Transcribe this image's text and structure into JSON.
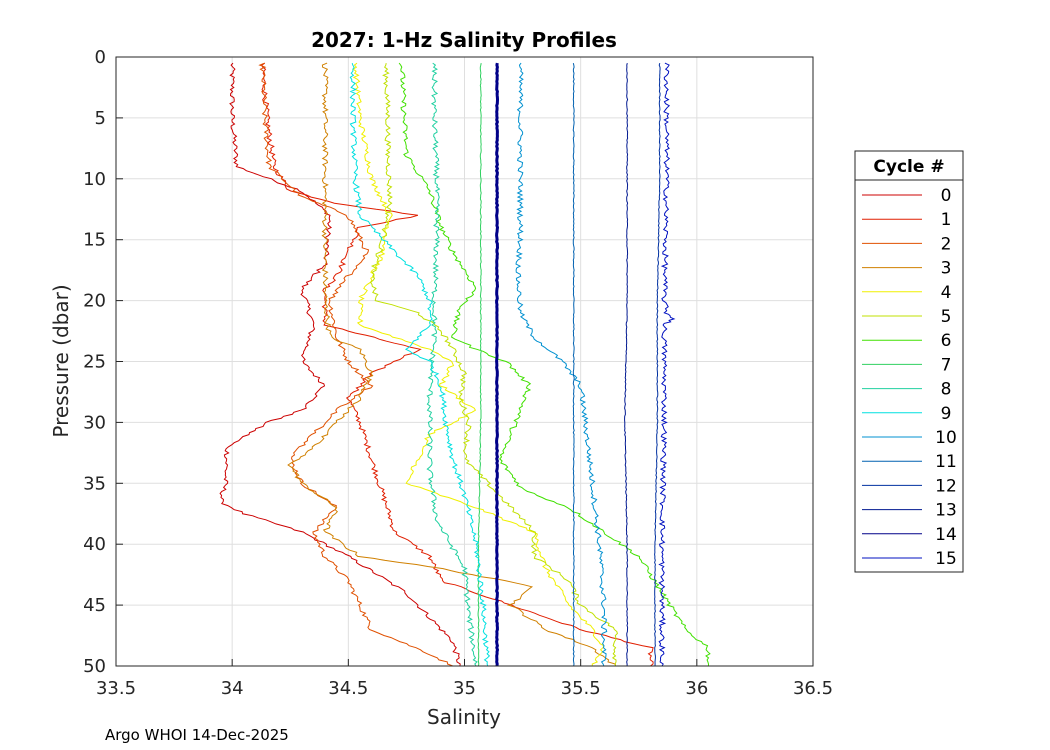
{
  "chart_data": {
    "type": "line",
    "title": "2027: 1-Hz Salinity Profiles",
    "xlabel": "Salinity",
    "ylabel": "Pressure (dbar)",
    "xlim": [
      33.5,
      36.5
    ],
    "ylim": [
      0,
      50
    ],
    "y_reversed": true,
    "grid": true,
    "x_ticks": [
      "33.5",
      "34",
      "34.5",
      "35",
      "35.5",
      "36",
      "36.5"
    ],
    "y_ticks": [
      "0",
      "5",
      "10",
      "15",
      "20",
      "25",
      "30",
      "35",
      "40",
      "45",
      "50"
    ],
    "legend_title": "Cycle #",
    "legend_position": "outside-right",
    "footer": "Argo WHOI 14-Dec-2025",
    "series": [
      {
        "name": "0",
        "color": "#cc0000",
        "points": [
          [
            34.0,
            0.5
          ],
          [
            34.0,
            5
          ],
          [
            34.02,
            9
          ],
          [
            34.3,
            11
          ],
          [
            34.42,
            13
          ],
          [
            34.4,
            17
          ],
          [
            34.3,
            19
          ],
          [
            34.35,
            22
          ],
          [
            34.3,
            25
          ],
          [
            34.4,
            27
          ],
          [
            34.3,
            29
          ],
          [
            34.15,
            30
          ],
          [
            33.98,
            32
          ],
          [
            33.97,
            35
          ],
          [
            33.95,
            36.5
          ],
          [
            34.05,
            37.5
          ],
          [
            34.3,
            39
          ],
          [
            34.5,
            41
          ],
          [
            34.75,
            44
          ],
          [
            34.85,
            46
          ],
          [
            34.95,
            48
          ],
          [
            34.98,
            50
          ]
        ]
      },
      {
        "name": "1",
        "color": "#e01e00",
        "points": [
          [
            34.13,
            0.5
          ],
          [
            34.15,
            5
          ],
          [
            34.18,
            9
          ],
          [
            34.25,
            11
          ],
          [
            34.45,
            12
          ],
          [
            34.8,
            13
          ],
          [
            34.55,
            14
          ],
          [
            34.5,
            16
          ],
          [
            34.45,
            18
          ],
          [
            34.4,
            19
          ],
          [
            34.4,
            22
          ],
          [
            34.6,
            23
          ],
          [
            34.8,
            24
          ],
          [
            34.6,
            26
          ],
          [
            34.5,
            28
          ],
          [
            34.55,
            30
          ],
          [
            34.6,
            33
          ],
          [
            34.65,
            36
          ],
          [
            34.7,
            39
          ],
          [
            34.85,
            41
          ],
          [
            34.9,
            43
          ],
          [
            35.2,
            45
          ],
          [
            35.5,
            47
          ],
          [
            35.8,
            48.5
          ],
          [
            35.8,
            50
          ]
        ]
      },
      {
        "name": "2",
        "color": "#e05000",
        "points": [
          [
            34.13,
            0.5
          ],
          [
            34.14,
            5
          ],
          [
            34.16,
            9
          ],
          [
            34.3,
            11.5
          ],
          [
            34.5,
            13
          ],
          [
            34.58,
            16
          ],
          [
            34.5,
            18
          ],
          [
            34.42,
            20
          ],
          [
            34.45,
            23
          ],
          [
            34.5,
            25
          ],
          [
            34.6,
            27
          ],
          [
            34.45,
            29
          ],
          [
            34.35,
            31
          ],
          [
            34.25,
            33
          ],
          [
            34.3,
            35
          ],
          [
            34.45,
            37
          ],
          [
            34.35,
            39
          ],
          [
            34.4,
            41
          ],
          [
            34.5,
            43
          ],
          [
            34.55,
            45
          ],
          [
            34.6,
            47
          ],
          [
            34.85,
            49
          ],
          [
            34.95,
            50
          ]
        ]
      },
      {
        "name": "3",
        "color": "#d08000",
        "points": [
          [
            34.4,
            0.5
          ],
          [
            34.4,
            5
          ],
          [
            34.4,
            10
          ],
          [
            34.4,
            15
          ],
          [
            34.4,
            20
          ],
          [
            34.42,
            23
          ],
          [
            34.55,
            24
          ],
          [
            34.6,
            26
          ],
          [
            34.55,
            28
          ],
          [
            34.45,
            30
          ],
          [
            34.35,
            32
          ],
          [
            34.25,
            33.5
          ],
          [
            34.3,
            35
          ],
          [
            34.45,
            37
          ],
          [
            34.4,
            39
          ],
          [
            34.55,
            41
          ],
          [
            34.9,
            42
          ],
          [
            35.3,
            43.5
          ],
          [
            35.2,
            45
          ],
          [
            35.35,
            47
          ],
          [
            35.55,
            48.5
          ],
          [
            35.65,
            50
          ]
        ]
      },
      {
        "name": "4",
        "color": "#f0f000",
        "points": [
          [
            34.53,
            0.5
          ],
          [
            34.55,
            5
          ],
          [
            34.6,
            10
          ],
          [
            34.68,
            13
          ],
          [
            34.65,
            16
          ],
          [
            34.6,
            18
          ],
          [
            34.55,
            20
          ],
          [
            34.55,
            22
          ],
          [
            34.7,
            23
          ],
          [
            34.85,
            24
          ],
          [
            34.95,
            25
          ],
          [
            34.9,
            27
          ],
          [
            35.05,
            29
          ],
          [
            34.85,
            31
          ],
          [
            34.8,
            33
          ],
          [
            34.75,
            35
          ],
          [
            35.05,
            37
          ],
          [
            35.3,
            39
          ],
          [
            35.35,
            42
          ],
          [
            35.45,
            45
          ],
          [
            35.55,
            47
          ],
          [
            35.6,
            48.5
          ],
          [
            35.55,
            50
          ]
        ]
      },
      {
        "name": "5",
        "color": "#c0e000",
        "points": [
          [
            34.66,
            0.5
          ],
          [
            34.67,
            5
          ],
          [
            34.67,
            8
          ],
          [
            34.68,
            12
          ],
          [
            34.65,
            15
          ],
          [
            34.6,
            18
          ],
          [
            34.62,
            20
          ],
          [
            34.8,
            21
          ],
          [
            34.9,
            22.5
          ],
          [
            34.95,
            24
          ],
          [
            35.0,
            26
          ],
          [
            34.98,
            28
          ],
          [
            35.02,
            30
          ],
          [
            35.0,
            33
          ],
          [
            35.1,
            35
          ],
          [
            35.2,
            37
          ],
          [
            35.3,
            39
          ],
          [
            35.3,
            41
          ],
          [
            35.45,
            43
          ],
          [
            35.5,
            45
          ],
          [
            35.65,
            47
          ],
          [
            35.65,
            50
          ]
        ]
      },
      {
        "name": "6",
        "color": "#40e000",
        "points": [
          [
            34.73,
            0.5
          ],
          [
            34.74,
            5
          ],
          [
            34.75,
            8
          ],
          [
            34.85,
            11
          ],
          [
            34.9,
            14
          ],
          [
            34.95,
            16
          ],
          [
            35.05,
            19
          ],
          [
            34.97,
            21
          ],
          [
            34.95,
            23
          ],
          [
            35.05,
            24
          ],
          [
            35.18,
            25
          ],
          [
            35.28,
            27
          ],
          [
            35.22,
            30
          ],
          [
            35.15,
            33
          ],
          [
            35.25,
            35.5
          ],
          [
            35.45,
            37
          ],
          [
            35.6,
            39
          ],
          [
            35.75,
            41
          ],
          [
            35.85,
            44
          ],
          [
            35.95,
            47
          ],
          [
            36.05,
            48.5
          ],
          [
            36.05,
            50
          ]
        ]
      },
      {
        "name": "7",
        "color": "#30d060",
        "points": [
          [
            35.07,
            0.5
          ],
          [
            35.07,
            10
          ],
          [
            35.07,
            20
          ],
          [
            35.07,
            30
          ],
          [
            35.06,
            40
          ],
          [
            35.06,
            50
          ]
        ]
      },
      {
        "name": "8",
        "color": "#20d0a0",
        "points": [
          [
            34.87,
            0.5
          ],
          [
            34.87,
            5
          ],
          [
            34.88,
            10
          ],
          [
            34.88,
            15
          ],
          [
            34.87,
            20
          ],
          [
            34.87,
            23
          ],
          [
            34.86,
            25
          ],
          [
            34.85,
            28
          ],
          [
            34.85,
            31
          ],
          [
            34.85,
            34
          ],
          [
            34.88,
            38
          ],
          [
            35.0,
            42
          ],
          [
            35.02,
            46
          ],
          [
            35.05,
            50
          ]
        ]
      },
      {
        "name": "9",
        "color": "#00e0e0",
        "points": [
          [
            34.52,
            0.5
          ],
          [
            34.52,
            5
          ],
          [
            34.53,
            10
          ],
          [
            34.55,
            13
          ],
          [
            34.65,
            15
          ],
          [
            34.8,
            18
          ],
          [
            34.85,
            20
          ],
          [
            34.85,
            22
          ],
          [
            34.75,
            24
          ],
          [
            34.85,
            25
          ],
          [
            34.9,
            27
          ],
          [
            34.92,
            30
          ],
          [
            34.95,
            33
          ],
          [
            35.0,
            36
          ],
          [
            35.05,
            40
          ],
          [
            35.08,
            45
          ],
          [
            35.1,
            50
          ]
        ]
      },
      {
        "name": "10",
        "color": "#0090d0",
        "points": [
          [
            35.24,
            0.5
          ],
          [
            35.24,
            5
          ],
          [
            35.24,
            10
          ],
          [
            35.24,
            15
          ],
          [
            35.23,
            18
          ],
          [
            35.24,
            21
          ],
          [
            35.3,
            23
          ],
          [
            35.42,
            25
          ],
          [
            35.5,
            27
          ],
          [
            35.52,
            30
          ],
          [
            35.55,
            35
          ],
          [
            35.58,
            40
          ],
          [
            35.6,
            45
          ],
          [
            35.6,
            50
          ]
        ]
      },
      {
        "name": "11",
        "color": "#0060b0",
        "points": [
          [
            35.47,
            0.5
          ],
          [
            35.47,
            10
          ],
          [
            35.47,
            20
          ],
          [
            35.47,
            30
          ],
          [
            35.47,
            40
          ],
          [
            35.47,
            50
          ]
        ]
      },
      {
        "name": "12",
        "color": "#0030a0",
        "points": [
          [
            35.84,
            0.5
          ],
          [
            35.84,
            10
          ],
          [
            35.83,
            20
          ],
          [
            35.83,
            30
          ],
          [
            35.82,
            40
          ],
          [
            35.82,
            50
          ]
        ]
      },
      {
        "name": "13",
        "color": "#001890",
        "points": [
          [
            35.7,
            0.5
          ],
          [
            35.7,
            10
          ],
          [
            35.7,
            20
          ],
          [
            35.69,
            30
          ],
          [
            35.7,
            40
          ],
          [
            35.7,
            50
          ]
        ]
      },
      {
        "name": "14",
        "color": "#000088",
        "points": [
          [
            35.14,
            0.5
          ],
          [
            35.14,
            10
          ],
          [
            35.14,
            20
          ],
          [
            35.14,
            30
          ],
          [
            35.14,
            40
          ],
          [
            35.14,
            50
          ]
        ]
      },
      {
        "name": "15",
        "color": "#0010c0",
        "points": [
          [
            35.87,
            0.5
          ],
          [
            35.87,
            10
          ],
          [
            35.86,
            20
          ],
          [
            35.87,
            21
          ],
          [
            35.9,
            21.5
          ],
          [
            35.86,
            22
          ],
          [
            35.86,
            30
          ],
          [
            35.85,
            40
          ],
          [
            35.85,
            50
          ]
        ]
      }
    ]
  }
}
